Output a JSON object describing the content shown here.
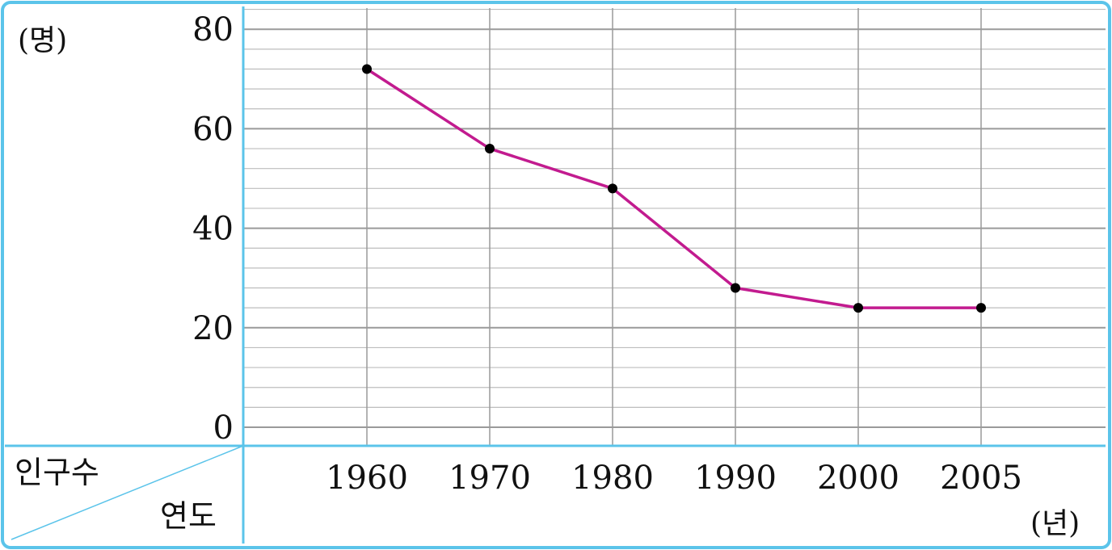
{
  "chart_data": {
    "type": "line",
    "x_unit": "(년)",
    "y_unit": "(명)",
    "header_row_label": "인구수",
    "header_col_label": "연도",
    "categories": [
      "1960",
      "1970",
      "1980",
      "1990",
      "2000",
      "2005"
    ],
    "series": [
      {
        "values": [
          72,
          56,
          48,
          28,
          24,
          24
        ]
      }
    ],
    "y_ticks": [
      "0",
      "20",
      "40",
      "60",
      "80"
    ],
    "y_tick_values": [
      0,
      20,
      40,
      60,
      80
    ],
    "ylim": [
      0,
      80
    ],
    "minor_step": 4,
    "grid": true,
    "colors": {
      "line": "#c21b8f",
      "marker": "#000000",
      "frame": "#5bc4ea",
      "grid_major": "#9a9a9a",
      "grid_minor": "#bdbdbd"
    }
  }
}
